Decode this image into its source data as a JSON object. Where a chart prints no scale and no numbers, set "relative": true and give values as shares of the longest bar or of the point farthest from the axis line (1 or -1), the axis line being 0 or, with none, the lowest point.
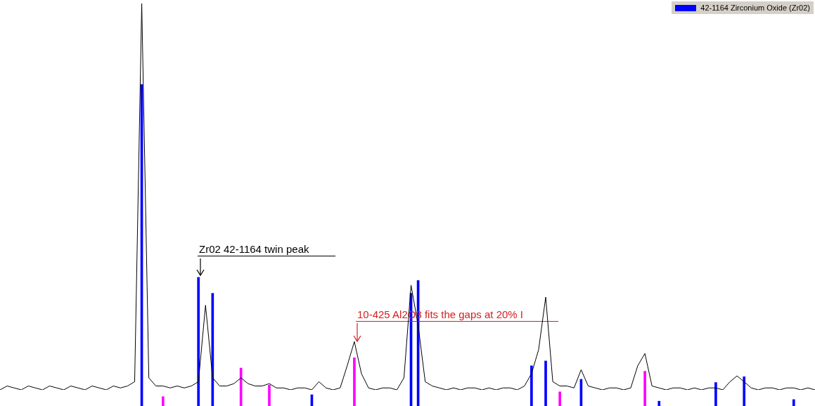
{
  "chart_data": [
    {
      "type": "line",
      "relative": true,
      "categories": [
        null,
        null,
        null,
        null,
        null,
        null,
        null,
        null,
        null,
        null,
        null,
        null,
        null,
        null,
        null,
        null,
        null,
        null,
        null,
        null,
        null,
        null,
        null,
        null,
        null,
        null,
        null,
        null,
        null,
        null,
        null,
        null,
        null,
        null,
        null,
        null,
        null,
        null,
        null,
        null,
        null,
        null,
        null,
        null,
        null,
        null,
        null,
        null,
        null,
        null,
        null,
        null,
        null,
        null,
        null,
        null,
        null,
        null,
        null,
        null,
        null,
        null,
        null,
        null,
        null,
        null,
        null,
        null,
        null,
        null,
        null,
        null,
        null,
        null,
        null,
        null,
        null,
        null,
        null,
        null,
        null,
        null,
        null,
        null,
        null,
        null,
        null,
        null,
        null,
        null,
        null,
        null,
        null,
        null,
        null,
        null,
        null,
        null,
        null,
        null,
        null,
        null,
        null,
        null,
        null,
        null,
        null,
        null,
        null,
        null,
        null,
        null,
        null,
        null,
        null,
        null
      ],
      "series": [
        {
          "color": "#000000",
          "values": [
            0,
            0.01,
            0.005,
            0,
            0.01,
            0.005,
            0,
            0.01,
            0.005,
            0,
            0.01,
            0.005,
            0,
            0.01,
            0.005,
            0,
            0.01,
            0.005,
            0.01,
            0.021,
            1,
            0.031,
            0.01,
            0.01,
            0.005,
            0.01,
            0.005,
            0.01,
            0.021,
            0.219,
            0.031,
            0.01,
            0.01,
            0.016,
            0.031,
            0.016,
            0.01,
            0.01,
            0.016,
            0.005,
            0.005,
            0,
            0.005,
            0.005,
            0,
            0.021,
            0.005,
            0,
            0.005,
            0.063,
            0.125,
            0.042,
            0.005,
            0,
            0.005,
            0.005,
            0,
            0.031,
            0.271,
            0.167,
            0.021,
            0.01,
            0.005,
            0,
            0.005,
            0,
            0.005,
            0.005,
            0,
            0.005,
            0,
            0.005,
            0.005,
            0,
            0.01,
            0.042,
            0.104,
            0.24,
            0.021,
            0.01,
            0.01,
            0.005,
            0.052,
            0.01,
            0.005,
            0,
            0.005,
            0.005,
            0,
            0.005,
            0.063,
            0.094,
            0.01,
            0.005,
            0,
            0.005,
            0.005,
            0,
            0.005,
            0,
            0.005,
            0.005,
            0,
            0.021,
            0.036,
            0.021,
            0.005,
            0,
            0.005,
            0.005,
            0,
            0.005,
            0.005,
            0,
            0.005,
            0
          ]
        }
      ]
    },
    {
      "type": "bar",
      "relative": true,
      "legend": "top right",
      "categories": [
        null,
        null,
        null,
        null,
        null,
        null,
        null,
        null,
        null,
        null,
        null,
        null,
        null,
        null,
        null,
        null,
        null,
        null,
        null,
        null,
        null,
        null,
        null,
        null,
        null,
        null,
        null,
        null,
        null,
        null,
        null,
        null,
        null,
        null,
        null,
        null,
        null,
        null,
        null,
        null,
        null,
        null,
        null,
        null,
        null,
        null,
        null,
        null,
        null,
        null,
        null,
        null,
        null,
        null,
        null,
        null,
        null,
        null,
        null,
        null,
        null,
        null,
        null,
        null,
        null,
        null,
        null,
        null,
        null,
        null,
        null,
        null,
        null,
        null,
        null,
        null,
        null,
        null,
        null,
        null,
        null,
        null,
        null,
        null,
        null,
        null,
        null,
        null,
        null,
        null,
        null,
        null,
        null,
        null,
        null,
        null,
        null,
        null,
        null,
        null,
        null,
        null,
        null,
        null,
        null,
        null,
        null,
        null,
        null,
        null,
        null,
        null,
        null,
        null,
        null,
        null
      ],
      "series": [
        {
          "name": "42-1164 Zirconium Oxide (Zr02)",
          "color": "#0000ff",
          "values": [
            null,
            null,
            null,
            null,
            null,
            null,
            null,
            null,
            null,
            null,
            null,
            null,
            null,
            null,
            null,
            null,
            null,
            null,
            null,
            null,
            1,
            null,
            null,
            null,
            null,
            null,
            null,
            null,
            0.4,
            null,
            0.35,
            null,
            null,
            null,
            null,
            null,
            null,
            null,
            null,
            null,
            null,
            null,
            null,
            null,
            0.035,
            null,
            null,
            null,
            null,
            null,
            null,
            null,
            null,
            null,
            null,
            null,
            null,
            null,
            0.35,
            0.39,
            null,
            null,
            null,
            null,
            null,
            null,
            null,
            null,
            null,
            null,
            null,
            null,
            null,
            null,
            null,
            0.125,
            null,
            0.14,
            null,
            null,
            null,
            null,
            0.083,
            null,
            null,
            null,
            null,
            null,
            null,
            null,
            null,
            null,
            null,
            0.015,
            null,
            null,
            null,
            null,
            null,
            null,
            null,
            0.073,
            null,
            null,
            null,
            0.091,
            null,
            null,
            null,
            null,
            null,
            null,
            0.02,
            null,
            null,
            null
          ]
        },
        {
          "color": "#ff00ff",
          "values": [
            null,
            null,
            null,
            null,
            null,
            null,
            null,
            null,
            null,
            null,
            null,
            null,
            null,
            null,
            null,
            null,
            null,
            null,
            null,
            null,
            null,
            null,
            null,
            0.029,
            null,
            null,
            null,
            null,
            null,
            null,
            null,
            null,
            null,
            null,
            0.118,
            null,
            null,
            null,
            0.065,
            null,
            null,
            null,
            null,
            null,
            null,
            null,
            null,
            null,
            null,
            null,
            0.15,
            null,
            null,
            null,
            null,
            null,
            null,
            null,
            null,
            null,
            null,
            null,
            null,
            null,
            null,
            null,
            null,
            null,
            null,
            null,
            null,
            null,
            null,
            null,
            null,
            null,
            null,
            null,
            null,
            0.044,
            null,
            null,
            null,
            null,
            null,
            null,
            null,
            null,
            null,
            null,
            null,
            0.108,
            null,
            null,
            null,
            null,
            null,
            null,
            null,
            null,
            null,
            null,
            null,
            null,
            null,
            null,
            null,
            null,
            null,
            null,
            null,
            null,
            null,
            null,
            null,
            null
          ]
        }
      ],
      "annotations": [
        "Zr02 42-1164 twin peak",
        "10-425 Al2O3 fits the gaps at 20% I"
      ]
    }
  ]
}
